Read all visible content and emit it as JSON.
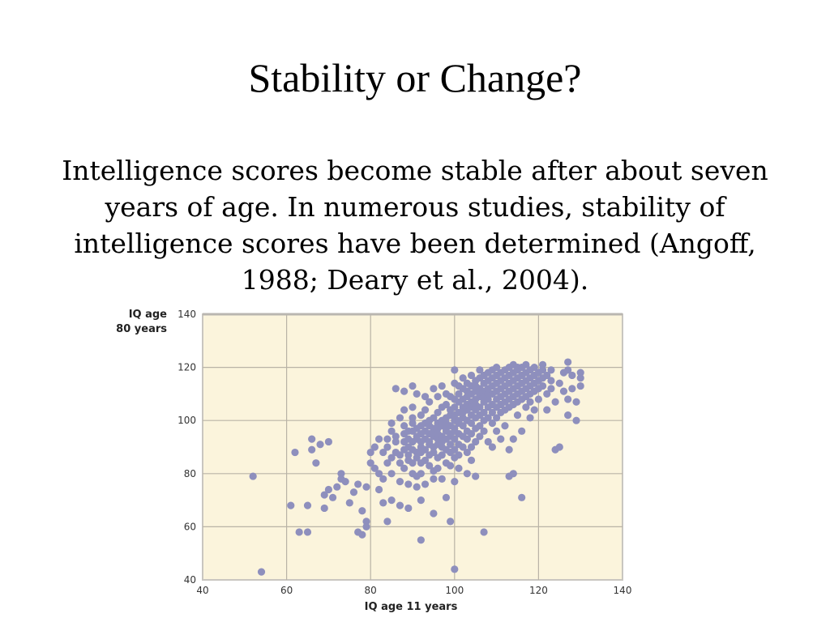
{
  "slide": {
    "title": "Stability or Change?",
    "body": "Intelligence scores become stable after about seven years of age. In numerous studies, stability of intelligence scores have been determined (Angoff, 1988; Deary et al., 2004)."
  },
  "chart_data": {
    "type": "scatter",
    "xlabel": "IQ age 11 years",
    "ylabel": [
      "IQ age",
      "80 years"
    ],
    "xlim": [
      40,
      140
    ],
    "ylim": [
      40,
      140
    ],
    "xticks": [
      40,
      60,
      80,
      100,
      120,
      140
    ],
    "yticks": [
      40,
      60,
      80,
      100,
      120,
      140
    ],
    "grid": true,
    "colors": {
      "point": "#8e8fbd",
      "plot_bg": "#fbf4dc",
      "grid": "#b9b3a6",
      "border": "#c9c6c0"
    },
    "points": [
      [
        52,
        79
      ],
      [
        54,
        43
      ],
      [
        61,
        68
      ],
      [
        62,
        88
      ],
      [
        63,
        58
      ],
      [
        65,
        58
      ],
      [
        65,
        68
      ],
      [
        66,
        93
      ],
      [
        66,
        89
      ],
      [
        67,
        84
      ],
      [
        68,
        91
      ],
      [
        69,
        72
      ],
      [
        69,
        67
      ],
      [
        70,
        92
      ],
      [
        70,
        74
      ],
      [
        71,
        71
      ],
      [
        72,
        75
      ],
      [
        73,
        78
      ],
      [
        73,
        80
      ],
      [
        74,
        77
      ],
      [
        75,
        69
      ],
      [
        76,
        73
      ],
      [
        77,
        76
      ],
      [
        77,
        58
      ],
      [
        78,
        57
      ],
      [
        78,
        66
      ],
      [
        79,
        62
      ],
      [
        79,
        60
      ],
      [
        79,
        75
      ],
      [
        80,
        84
      ],
      [
        80,
        88
      ],
      [
        81,
        90
      ],
      [
        81,
        82
      ],
      [
        82,
        74
      ],
      [
        82,
        80
      ],
      [
        82,
        93
      ],
      [
        83,
        88
      ],
      [
        83,
        78
      ],
      [
        83,
        69
      ],
      [
        84,
        84
      ],
      [
        84,
        90
      ],
      [
        84,
        93
      ],
      [
        84,
        62
      ],
      [
        85,
        96
      ],
      [
        85,
        99
      ],
      [
        85,
        86
      ],
      [
        85,
        80
      ],
      [
        85,
        70
      ],
      [
        86,
        88
      ],
      [
        86,
        94
      ],
      [
        86,
        112
      ],
      [
        86,
        92
      ],
      [
        87,
        87
      ],
      [
        87,
        84
      ],
      [
        87,
        101
      ],
      [
        87,
        77
      ],
      [
        87,
        68
      ],
      [
        88,
        92
      ],
      [
        88,
        95
      ],
      [
        88,
        89
      ],
      [
        88,
        111
      ],
      [
        88,
        98
      ],
      [
        88,
        82
      ],
      [
        88,
        104
      ],
      [
        89,
        93
      ],
      [
        89,
        87
      ],
      [
        89,
        85
      ],
      [
        89,
        90
      ],
      [
        89,
        96
      ],
      [
        89,
        76
      ],
      [
        89,
        67
      ],
      [
        90,
        84
      ],
      [
        90,
        92
      ],
      [
        90,
        105
      ],
      [
        90,
        96
      ],
      [
        90,
        99
      ],
      [
        90,
        80
      ],
      [
        90,
        113
      ],
      [
        90,
        101
      ],
      [
        90,
        89
      ],
      [
        91,
        88
      ],
      [
        91,
        97
      ],
      [
        91,
        94
      ],
      [
        91,
        110
      ],
      [
        91,
        86
      ],
      [
        91,
        93
      ],
      [
        91,
        79
      ],
      [
        91,
        75
      ],
      [
        92,
        90
      ],
      [
        92,
        98
      ],
      [
        92,
        84
      ],
      [
        92,
        92
      ],
      [
        92,
        102
      ],
      [
        92,
        88
      ],
      [
        92,
        95
      ],
      [
        92,
        80
      ],
      [
        92,
        55
      ],
      [
        92,
        70
      ],
      [
        93,
        96
      ],
      [
        93,
        93
      ],
      [
        93,
        85
      ],
      [
        93,
        99
      ],
      [
        93,
        104
      ],
      [
        93,
        89
      ],
      [
        93,
        76
      ],
      [
        93,
        109
      ],
      [
        94,
        92
      ],
      [
        94,
        87
      ],
      [
        94,
        95
      ],
      [
        94,
        98
      ],
      [
        94,
        100
      ],
      [
        94,
        83
      ],
      [
        94,
        91
      ],
      [
        94,
        107
      ],
      [
        95,
        94
      ],
      [
        95,
        90
      ],
      [
        95,
        97
      ],
      [
        95,
        88
      ],
      [
        95,
        101
      ],
      [
        95,
        81
      ],
      [
        95,
        96
      ],
      [
        95,
        78
      ],
      [
        95,
        112
      ],
      [
        95,
        65
      ],
      [
        96,
        93
      ],
      [
        96,
        99
      ],
      [
        96,
        91
      ],
      [
        96,
        103
      ],
      [
        96,
        86
      ],
      [
        96,
        95
      ],
      [
        96,
        97
      ],
      [
        96,
        82
      ],
      [
        96,
        109
      ],
      [
        97,
        90
      ],
      [
        97,
        98
      ],
      [
        97,
        94
      ],
      [
        97,
        100
      ],
      [
        97,
        87
      ],
      [
        97,
        105
      ],
      [
        97,
        92
      ],
      [
        97,
        78
      ],
      [
        97,
        113
      ],
      [
        98,
        96
      ],
      [
        98,
        93
      ],
      [
        98,
        101
      ],
      [
        98,
        89
      ],
      [
        98,
        99
      ],
      [
        98,
        84
      ],
      [
        98,
        106
      ],
      [
        98,
        110
      ],
      [
        98,
        71
      ],
      [
        98,
        97
      ],
      [
        99,
        95
      ],
      [
        99,
        102
      ],
      [
        99,
        91
      ],
      [
        99,
        98
      ],
      [
        99,
        104
      ],
      [
        99,
        88
      ],
      [
        99,
        94
      ],
      [
        99,
        83
      ],
      [
        99,
        109
      ],
      [
        99,
        62
      ],
      [
        100,
        97
      ],
      [
        100,
        100
      ],
      [
        100,
        93
      ],
      [
        100,
        105
      ],
      [
        100,
        89
      ],
      [
        100,
        102
      ],
      [
        100,
        86
      ],
      [
        100,
        108
      ],
      [
        100,
        114
      ],
      [
        100,
        96
      ],
      [
        100,
        77
      ],
      [
        100,
        119
      ],
      [
        100,
        44
      ],
      [
        101,
        99
      ],
      [
        101,
        103
      ],
      [
        101,
        95
      ],
      [
        101,
        107
      ],
      [
        101,
        91
      ],
      [
        101,
        110
      ],
      [
        101,
        100
      ],
      [
        101,
        87
      ],
      [
        101,
        113
      ],
      [
        101,
        82
      ],
      [
        102,
        101
      ],
      [
        102,
        98
      ],
      [
        102,
        105
      ],
      [
        102,
        94
      ],
      [
        102,
        108
      ],
      [
        102,
        112
      ],
      [
        102,
        90
      ],
      [
        102,
        103
      ],
      [
        102,
        116
      ],
      [
        103,
        100
      ],
      [
        103,
        104
      ],
      [
        103,
        96
      ],
      [
        103,
        109
      ],
      [
        103,
        111
      ],
      [
        103,
        93
      ],
      [
        103,
        114
      ],
      [
        103,
        88
      ],
      [
        103,
        106
      ],
      [
        103,
        80
      ],
      [
        104,
        102
      ],
      [
        104,
        107
      ],
      [
        104,
        99
      ],
      [
        104,
        110
      ],
      [
        104,
        113
      ],
      [
        104,
        95
      ],
      [
        104,
        117
      ],
      [
        104,
        105
      ],
      [
        104,
        90
      ],
      [
        104,
        85
      ],
      [
        105,
        104
      ],
      [
        105,
        108
      ],
      [
        105,
        101
      ],
      [
        105,
        111
      ],
      [
        105,
        115
      ],
      [
        105,
        97
      ],
      [
        105,
        113
      ],
      [
        105,
        106
      ],
      [
        105,
        92
      ],
      [
        105,
        79
      ],
      [
        106,
        105
      ],
      [
        106,
        109
      ],
      [
        106,
        102
      ],
      [
        106,
        112
      ],
      [
        106,
        116
      ],
      [
        106,
        98
      ],
      [
        106,
        110
      ],
      [
        106,
        94
      ],
      [
        106,
        119
      ],
      [
        107,
        107
      ],
      [
        107,
        111
      ],
      [
        107,
        103
      ],
      [
        107,
        114
      ],
      [
        107,
        100
      ],
      [
        107,
        117
      ],
      [
        107,
        96
      ],
      [
        107,
        109
      ],
      [
        107,
        58
      ],
      [
        108,
        108
      ],
      [
        108,
        112
      ],
      [
        108,
        105
      ],
      [
        108,
        115
      ],
      [
        108,
        101
      ],
      [
        108,
        118
      ],
      [
        108,
        110
      ],
      [
        108,
        92
      ],
      [
        109,
        110
      ],
      [
        109,
        106
      ],
      [
        109,
        113
      ],
      [
        109,
        116
      ],
      [
        109,
        103
      ],
      [
        109,
        99
      ],
      [
        109,
        119
      ],
      [
        109,
        90
      ],
      [
        110,
        111
      ],
      [
        110,
        108
      ],
      [
        110,
        114
      ],
      [
        110,
        117
      ],
      [
        110,
        105
      ],
      [
        110,
        101
      ],
      [
        110,
        120
      ],
      [
        110,
        96
      ],
      [
        111,
        112
      ],
      [
        111,
        109
      ],
      [
        111,
        115
      ],
      [
        111,
        118
      ],
      [
        111,
        106
      ],
      [
        111,
        103
      ],
      [
        111,
        93
      ],
      [
        112,
        113
      ],
      [
        112,
        110
      ],
      [
        112,
        116
      ],
      [
        112,
        119
      ],
      [
        112,
        107
      ],
      [
        112,
        104
      ],
      [
        112,
        98
      ],
      [
        113,
        114
      ],
      [
        113,
        111
      ],
      [
        113,
        117
      ],
      [
        113,
        108
      ],
      [
        113,
        105
      ],
      [
        113,
        120
      ],
      [
        113,
        89
      ],
      [
        113,
        79
      ],
      [
        114,
        115
      ],
      [
        114,
        112
      ],
      [
        114,
        118
      ],
      [
        114,
        109
      ],
      [
        114,
        106
      ],
      [
        114,
        121
      ],
      [
        114,
        93
      ],
      [
        114,
        80
      ],
      [
        115,
        116
      ],
      [
        115,
        113
      ],
      [
        115,
        119
      ],
      [
        115,
        110
      ],
      [
        115,
        107
      ],
      [
        115,
        102
      ],
      [
        115,
        120
      ],
      [
        116,
        114
      ],
      [
        116,
        117
      ],
      [
        116,
        111
      ],
      [
        116,
        108
      ],
      [
        116,
        120
      ],
      [
        116,
        71
      ],
      [
        116,
        96
      ],
      [
        117,
        118
      ],
      [
        117,
        115
      ],
      [
        117,
        112
      ],
      [
        117,
        109
      ],
      [
        117,
        121
      ],
      [
        117,
        105
      ],
      [
        118,
        116
      ],
      [
        118,
        113
      ],
      [
        118,
        119
      ],
      [
        118,
        110
      ],
      [
        118,
        107
      ],
      [
        118,
        101
      ],
      [
        119,
        117
      ],
      [
        119,
        114
      ],
      [
        119,
        120
      ],
      [
        119,
        111
      ],
      [
        119,
        104
      ],
      [
        120,
        118
      ],
      [
        120,
        115
      ],
      [
        120,
        112
      ],
      [
        120,
        108
      ],
      [
        121,
        119
      ],
      [
        121,
        116
      ],
      [
        121,
        121
      ],
      [
        121,
        113
      ],
      [
        122,
        117
      ],
      [
        122,
        110
      ],
      [
        122,
        104
      ],
      [
        123,
        119
      ],
      [
        123,
        115
      ],
      [
        123,
        112
      ],
      [
        124,
        89
      ],
      [
        124,
        107
      ],
      [
        125,
        90
      ],
      [
        125,
        114
      ],
      [
        126,
        118
      ],
      [
        126,
        111
      ],
      [
        127,
        119
      ],
      [
        127,
        122
      ],
      [
        127,
        108
      ],
      [
        127,
        102
      ],
      [
        128,
        117
      ],
      [
        128,
        112
      ],
      [
        129,
        107
      ],
      [
        129,
        100
      ],
      [
        130,
        116
      ],
      [
        130,
        113
      ],
      [
        130,
        118
      ]
    ]
  }
}
